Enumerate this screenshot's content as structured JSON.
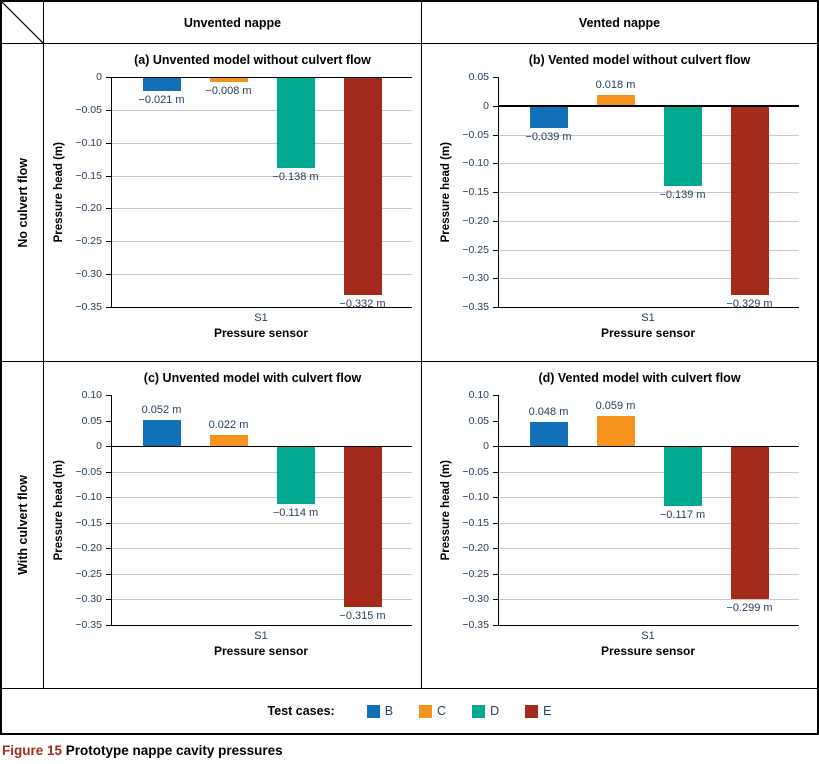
{
  "header": {
    "col1": "Unvented nappe",
    "col2": "Vented nappe"
  },
  "rows": [
    {
      "label": "No culvert flow"
    },
    {
      "label": "With culvert flow"
    }
  ],
  "legend": {
    "label": "Test cases:",
    "items": [
      {
        "name": "B",
        "color": "#1170b8"
      },
      {
        "name": "C",
        "color": "#f6921e"
      },
      {
        "name": "D",
        "color": "#00a98f"
      },
      {
        "name": "E",
        "color": "#a42a1c"
      }
    ]
  },
  "caption": {
    "prefix": "Figure 15",
    "text": "Prototype nappe cavity pressures"
  },
  "chart_data": [
    {
      "type": "bar",
      "title": "(a) Unvented model without culvert flow",
      "xlabel": "Pressure sensor",
      "ylabel": "Pressure head (m)",
      "categories": [
        "S1"
      ],
      "series": [
        {
          "name": "B",
          "values": [
            -0.021
          ]
        },
        {
          "name": "C",
          "values": [
            -0.008
          ]
        },
        {
          "name": "D",
          "values": [
            -0.138
          ]
        },
        {
          "name": "E",
          "values": [
            -0.332
          ]
        }
      ],
      "value_labels": [
        "−0.021 m",
        "−0.008 m",
        "−0.138 m",
        "−0.332 m"
      ],
      "ylim": [
        -0.35,
        0
      ],
      "ytick_values": [
        0,
        -0.05,
        -0.1,
        -0.15,
        -0.2,
        -0.25,
        -0.3,
        -0.35
      ],
      "ytick_labels": [
        "0",
        "−0.05",
        "−0.10",
        "−0.15",
        "−0.20",
        "−0.25",
        "−0.30",
        "−0.35"
      ],
      "grid": true,
      "legend_position": "none"
    },
    {
      "type": "bar",
      "title": "(b) Vented model without culvert flow",
      "xlabel": "Pressure sensor",
      "ylabel": "Pressure head (m)",
      "categories": [
        "S1"
      ],
      "series": [
        {
          "name": "B",
          "values": [
            -0.039
          ]
        },
        {
          "name": "C",
          "values": [
            0.018
          ]
        },
        {
          "name": "D",
          "values": [
            -0.139
          ]
        },
        {
          "name": "E",
          "values": [
            -0.329
          ]
        }
      ],
      "value_labels": [
        "−0.039 m",
        "0.018 m",
        "−0.139 m",
        "−0.329 m"
      ],
      "ylim": [
        -0.35,
        0.05
      ],
      "ytick_values": [
        0.05,
        0,
        -0.05,
        -0.1,
        -0.15,
        -0.2,
        -0.25,
        -0.3,
        -0.35
      ],
      "ytick_labels": [
        "0.05",
        "0",
        "−0.05",
        "−0.10",
        "−0.15",
        "−0.20",
        "−0.25",
        "−0.30",
        "−0.35"
      ],
      "grid": true,
      "legend_position": "none"
    },
    {
      "type": "bar",
      "title": "(c) Unvented model with culvert flow",
      "xlabel": "Pressure sensor",
      "ylabel": "Pressure head (m)",
      "categories": [
        "S1"
      ],
      "series": [
        {
          "name": "B",
          "values": [
            0.052
          ]
        },
        {
          "name": "C",
          "values": [
            0.022
          ]
        },
        {
          "name": "D",
          "values": [
            -0.114
          ]
        },
        {
          "name": "E",
          "values": [
            -0.315
          ]
        }
      ],
      "value_labels": [
        "0.052 m",
        "0.022 m",
        "−0.114 m",
        "−0.315 m"
      ],
      "ylim": [
        -0.35,
        0.1
      ],
      "ytick_values": [
        0.1,
        0.05,
        0,
        -0.05,
        -0.1,
        -0.15,
        -0.2,
        -0.25,
        -0.3,
        -0.35
      ],
      "ytick_labels": [
        "0.10",
        "0.05",
        "0",
        "−0.05",
        "−0.10",
        "−0.15",
        "−0.20",
        "−0.25",
        "−0.30",
        "−0.35"
      ],
      "grid": true,
      "legend_position": "none"
    },
    {
      "type": "bar",
      "title": "(d) Vented model with culvert flow",
      "xlabel": "Pressure sensor",
      "ylabel": "Pressure head (m)",
      "categories": [
        "S1"
      ],
      "series": [
        {
          "name": "B",
          "values": [
            0.048
          ]
        },
        {
          "name": "C",
          "values": [
            0.059
          ]
        },
        {
          "name": "D",
          "values": [
            -0.117
          ]
        },
        {
          "name": "E",
          "values": [
            -0.299
          ]
        }
      ],
      "value_labels": [
        "0.048 m",
        "0.059 m",
        "−0.117 m",
        "−0.299 m"
      ],
      "ylim": [
        -0.35,
        0.1
      ],
      "ytick_values": [
        0.1,
        0.05,
        0,
        -0.05,
        -0.1,
        -0.15,
        -0.2,
        -0.25,
        -0.3,
        -0.35
      ],
      "ytick_labels": [
        "0.10",
        "0.05",
        "0",
        "−0.05",
        "−0.10",
        "−0.15",
        "−0.20",
        "−0.25",
        "−0.30",
        "−0.35"
      ],
      "grid": true,
      "legend_position": "none"
    }
  ]
}
